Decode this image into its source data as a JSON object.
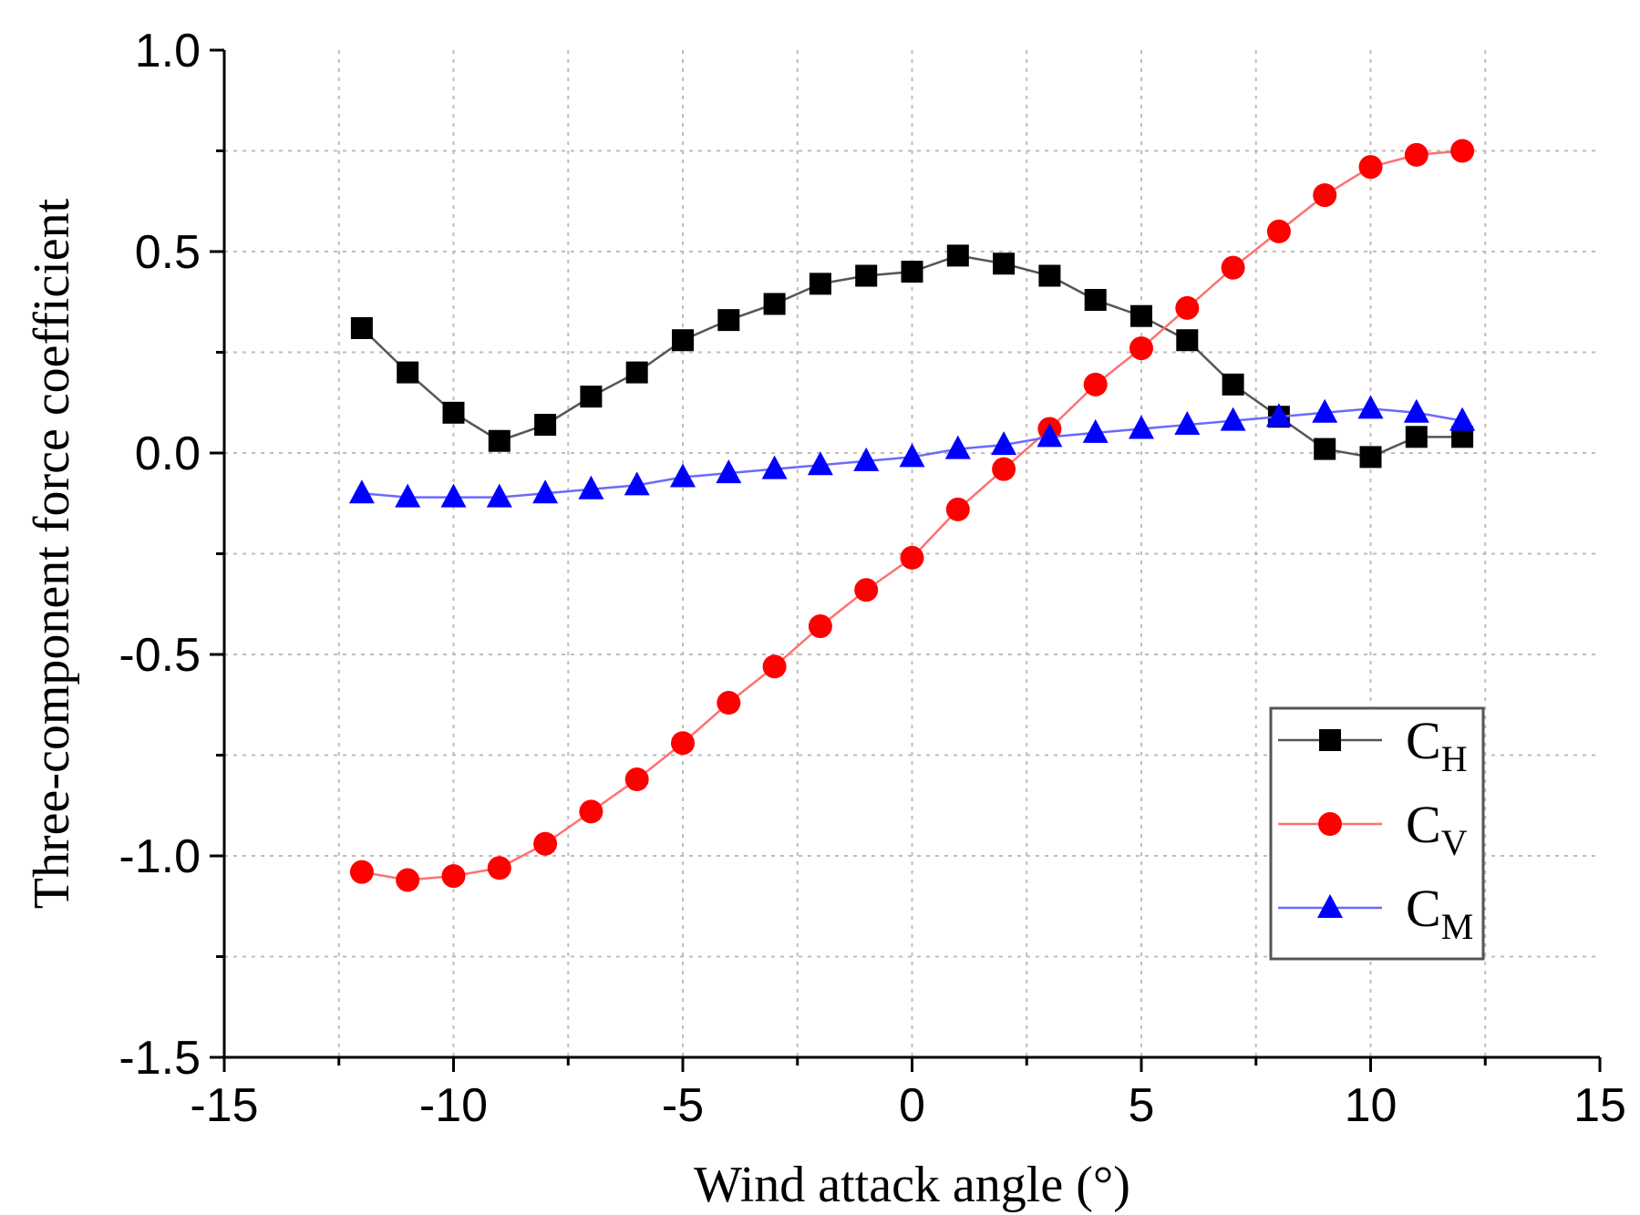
{
  "chart_data": {
    "type": "line",
    "xlabel": "Wind attack angle (°)",
    "ylabel": "Three-component force coefficient",
    "xlim": [
      -15,
      15
    ],
    "ylim": [
      -1.5,
      1.0
    ],
    "xticks": [
      -15,
      -10,
      -5,
      0,
      5,
      10,
      15
    ],
    "xtick_labels": [
      "-15",
      "-10",
      "-5",
      "0",
      "5",
      "10",
      "15"
    ],
    "yticks": [
      -1.5,
      -1.0,
      -0.5,
      0.0,
      0.5,
      1.0
    ],
    "ytick_labels": [
      "-1.5",
      "-1.0",
      "-0.5",
      "0.0",
      "0.5",
      "1.0"
    ],
    "grid": true,
    "legend_position": "bottom-right",
    "x": [
      -12,
      -11,
      -10,
      -9,
      -8,
      -7,
      -6,
      -5,
      -4,
      -3,
      -2,
      -1,
      0,
      1,
      2,
      3,
      4,
      5,
      6,
      7,
      8,
      9,
      10,
      11,
      12
    ],
    "series": [
      {
        "name": "CH",
        "legend_main": "C",
        "legend_sub": "H",
        "color": "#000000",
        "line_color": "#555555",
        "marker": "square",
        "values": [
          0.31,
          0.2,
          0.1,
          0.03,
          0.07,
          0.14,
          0.2,
          0.28,
          0.33,
          0.37,
          0.42,
          0.44,
          0.45,
          0.49,
          0.47,
          0.44,
          0.38,
          0.34,
          0.28,
          0.17,
          0.09,
          0.01,
          -0.01,
          0.04,
          0.04
        ]
      },
      {
        "name": "CV",
        "legend_main": "C",
        "legend_sub": "V",
        "color": "#ff0000",
        "line_color": "#ff7070",
        "marker": "circle",
        "values": [
          -1.04,
          -1.06,
          -1.05,
          -1.03,
          -0.97,
          -0.89,
          -0.81,
          -0.72,
          -0.62,
          -0.53,
          -0.43,
          -0.34,
          -0.26,
          -0.14,
          -0.04,
          0.06,
          0.17,
          0.26,
          0.36,
          0.46,
          0.55,
          0.64,
          0.71,
          0.74,
          0.75
        ]
      },
      {
        "name": "CM",
        "legend_main": "C",
        "legend_sub": "M",
        "color": "#0000ff",
        "line_color": "#6a6aff",
        "marker": "triangle",
        "values": [
          -0.1,
          -0.11,
          -0.11,
          -0.11,
          -0.1,
          -0.09,
          -0.08,
          -0.06,
          -0.05,
          -0.04,
          -0.03,
          -0.02,
          -0.01,
          0.01,
          0.02,
          0.04,
          0.05,
          0.06,
          0.07,
          0.08,
          0.09,
          0.1,
          0.11,
          0.1,
          0.08
        ]
      }
    ]
  }
}
